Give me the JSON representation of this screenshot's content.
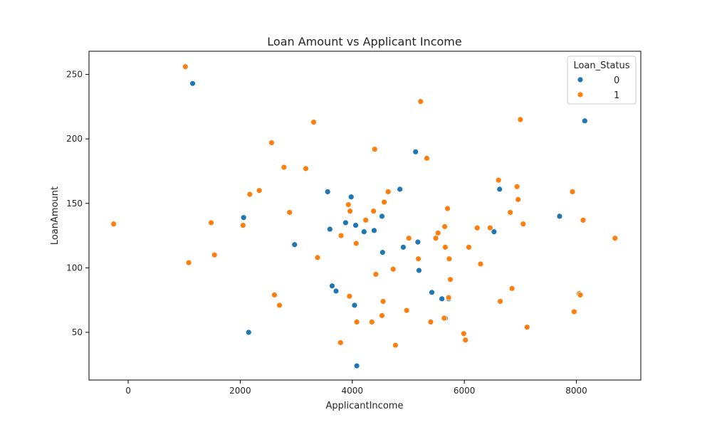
{
  "chart_data": {
    "type": "scatter",
    "title": "Loan Amount vs Applicant Income",
    "xlabel": "ApplicantIncome",
    "ylabel": "LoanAmount",
    "xlim": [
      -700,
      9150
    ],
    "ylim": [
      13,
      268
    ],
    "xticks": [
      0,
      2000,
      4000,
      6000,
      8000
    ],
    "yticks": [
      50,
      100,
      150,
      200,
      250
    ],
    "grid": false,
    "legend": {
      "title": "Loan_Status",
      "placement": "top-right",
      "entries": [
        {
          "label": "0",
          "color": "#1f77b4"
        },
        {
          "label": "1",
          "color": "#ff7f0e"
        }
      ]
    },
    "series": [
      {
        "name": "0",
        "color": "#1f77b4",
        "points": [
          [
            1150,
            243
          ],
          [
            8150,
            214
          ],
          [
            5130,
            190
          ],
          [
            4850,
            161
          ],
          [
            6630,
            161
          ],
          [
            3560,
            159
          ],
          [
            3980,
            155
          ],
          [
            7700,
            140
          ],
          [
            4530,
            140
          ],
          [
            2060,
            139
          ],
          [
            3880,
            135
          ],
          [
            4060,
            133
          ],
          [
            3600,
            130
          ],
          [
            4210,
            128
          ],
          [
            4390,
            129
          ],
          [
            6530,
            128
          ],
          [
            5170,
            120
          ],
          [
            2970,
            118
          ],
          [
            4910,
            116
          ],
          [
            4540,
            112
          ],
          [
            5190,
            98
          ],
          [
            3640,
            86
          ],
          [
            3710,
            82
          ],
          [
            5420,
            81
          ],
          [
            5600,
            76
          ],
          [
            5720,
            76
          ],
          [
            4040,
            71
          ],
          [
            5660,
            61
          ],
          [
            2150,
            50
          ],
          [
            4080,
            24
          ]
        ]
      },
      {
        "name": "1",
        "color": "#ff7f0e",
        "points": [
          [
            1020,
            256
          ],
          [
            5220,
            229
          ],
          [
            3310,
            213
          ],
          [
            7000,
            215
          ],
          [
            2560,
            197
          ],
          [
            4400,
            192
          ],
          [
            5330,
            185
          ],
          [
            2780,
            178
          ],
          [
            3170,
            177
          ],
          [
            2340,
            160
          ],
          [
            2170,
            157
          ],
          [
            4640,
            159
          ],
          [
            6610,
            168
          ],
          [
            6940,
            163
          ],
          [
            7930,
            159
          ],
          [
            4570,
            151
          ],
          [
            6960,
            153
          ],
          [
            3930,
            149
          ],
          [
            5700,
            146
          ],
          [
            3960,
            144
          ],
          [
            4380,
            144
          ],
          [
            2880,
            143
          ],
          [
            6820,
            143
          ],
          [
            4240,
            137
          ],
          [
            8120,
            137
          ],
          [
            1480,
            135
          ],
          [
            7050,
            134
          ],
          [
            -260,
            134
          ],
          [
            2050,
            133
          ],
          [
            5650,
            132
          ],
          [
            6230,
            131
          ],
          [
            6460,
            131
          ],
          [
            5530,
            127
          ],
          [
            3800,
            125
          ],
          [
            5010,
            123
          ],
          [
            5490,
            123
          ],
          [
            8690,
            123
          ],
          [
            4070,
            119
          ],
          [
            5660,
            116
          ],
          [
            6080,
            116
          ],
          [
            1540,
            110
          ],
          [
            3380,
            108
          ],
          [
            5180,
            107
          ],
          [
            5730,
            107
          ],
          [
            1080,
            104
          ],
          [
            6290,
            103
          ],
          [
            4730,
            99
          ],
          [
            4420,
            95
          ],
          [
            5750,
            91
          ],
          [
            6850,
            84
          ],
          [
            2610,
            79
          ],
          [
            3950,
            78
          ],
          [
            5720,
            77
          ],
          [
            8050,
            80
          ],
          [
            8070,
            79
          ],
          [
            4550,
            74
          ],
          [
            6640,
            74
          ],
          [
            2700,
            71
          ],
          [
            4970,
            67
          ],
          [
            7960,
            66
          ],
          [
            4530,
            63
          ],
          [
            5640,
            61
          ],
          [
            4080,
            58
          ],
          [
            4350,
            58
          ],
          [
            5400,
            58
          ],
          [
            7120,
            54
          ],
          [
            5990,
            49
          ],
          [
            6020,
            44
          ],
          [
            3790,
            42
          ],
          [
            4770,
            40
          ]
        ]
      }
    ]
  }
}
